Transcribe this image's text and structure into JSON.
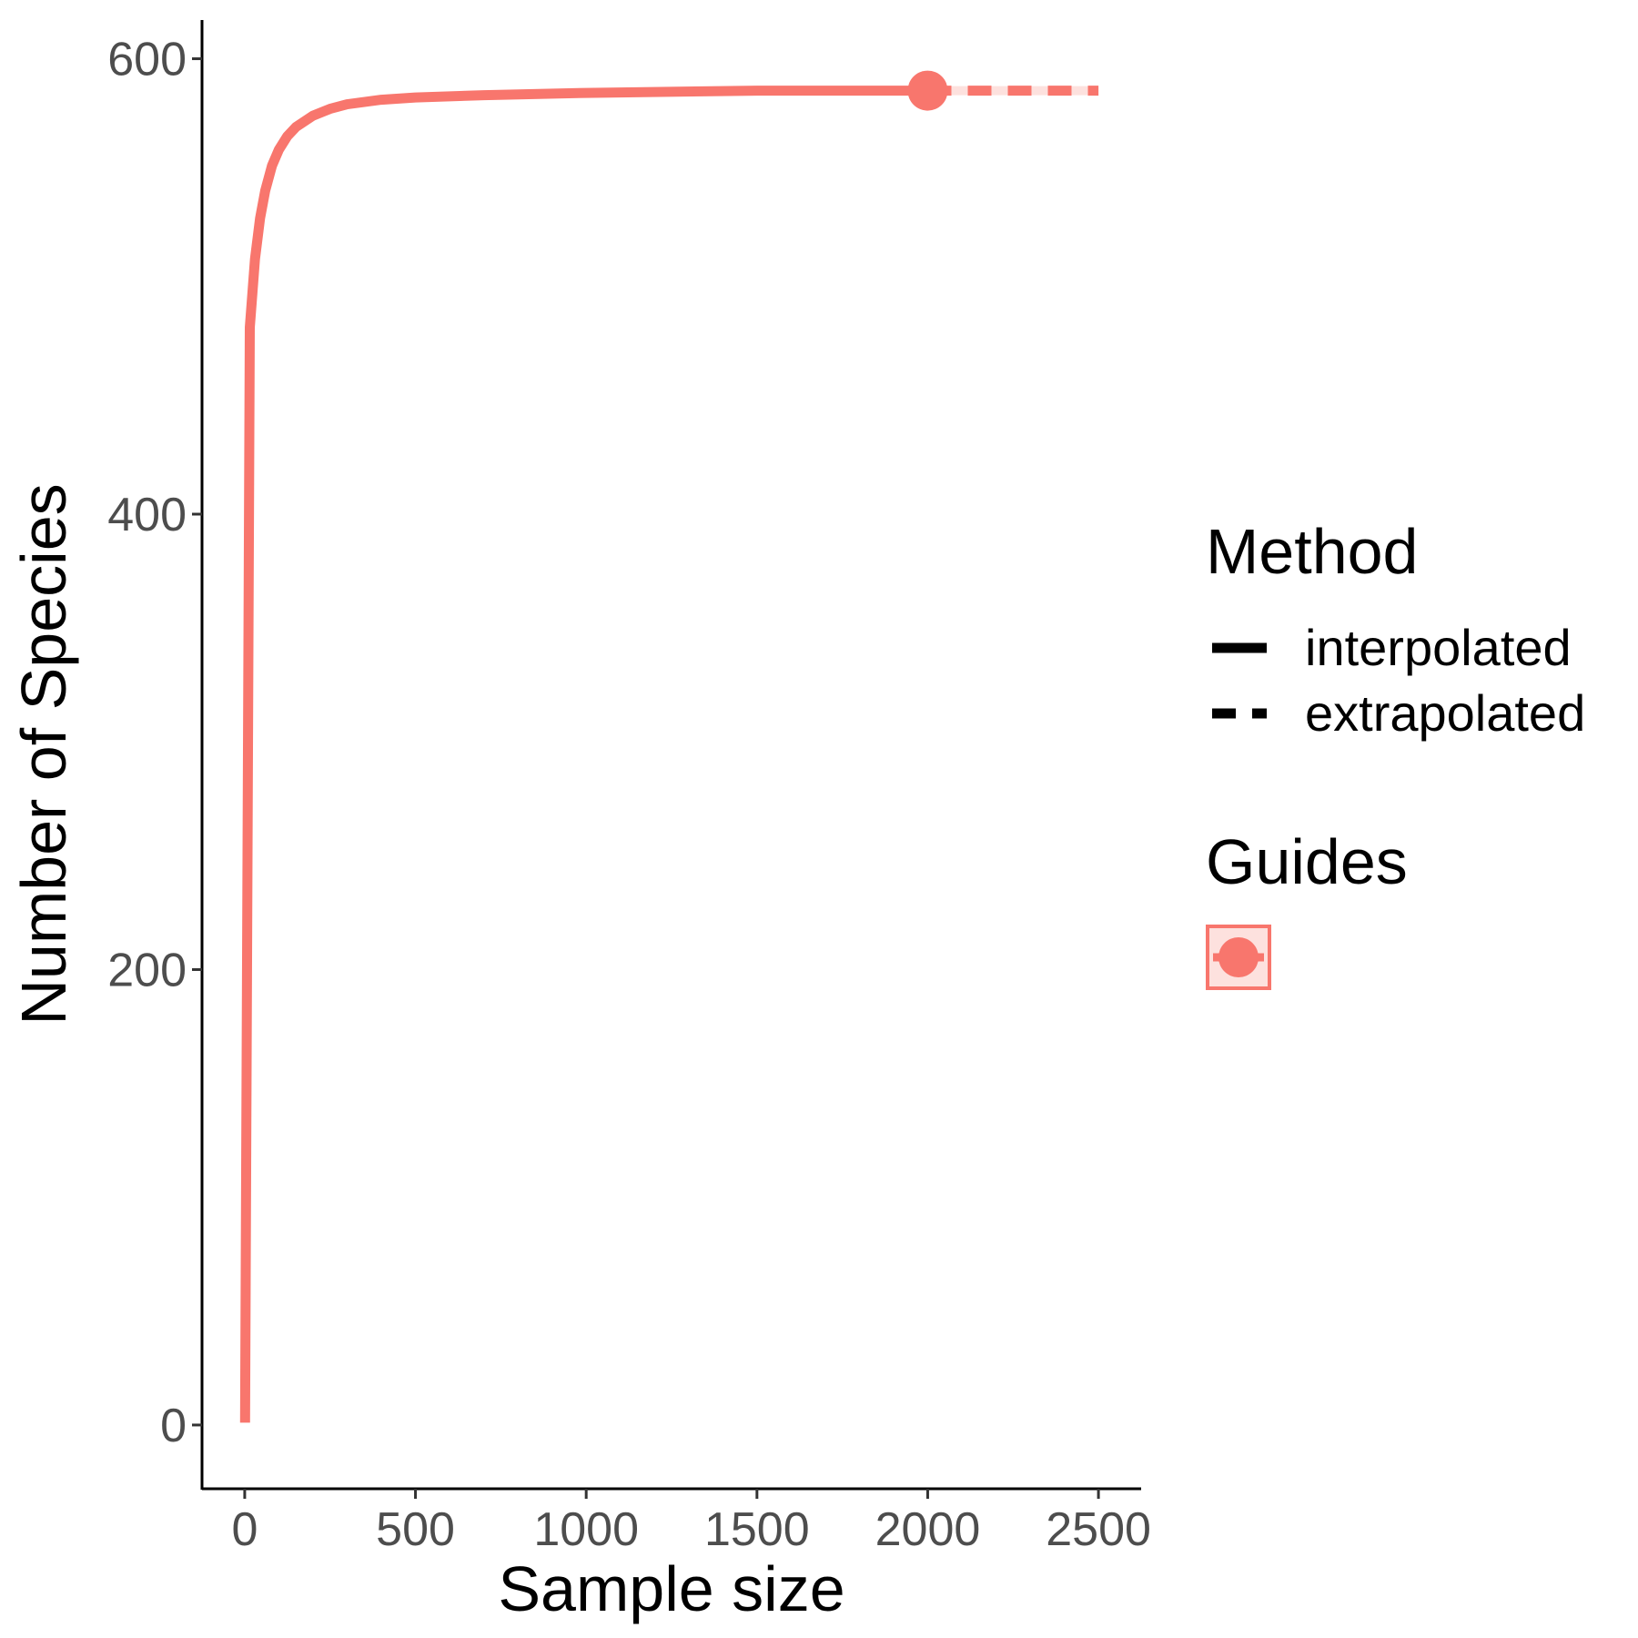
{
  "chart_data": {
    "type": "line",
    "xlabel": "Sample size",
    "ylabel": "Number of Species",
    "x_ticks": [
      0,
      500,
      1000,
      1500,
      2000,
      2500
    ],
    "y_ticks": [
      0,
      200,
      400,
      600
    ],
    "xlim": [
      -125,
      2625
    ],
    "ylim": [
      -28,
      617
    ],
    "grid": false,
    "legend_position": "right",
    "series": [
      {
        "method": "interpolated",
        "line_style": "solid",
        "color": "#F8766D",
        "x": [
          1,
          15,
          30,
          45,
          60,
          80,
          100,
          125,
          150,
          200,
          250,
          300,
          400,
          500,
          700,
          1000,
          1500,
          2000
        ],
        "y": [
          1,
          482,
          512,
          530,
          542,
          553,
          560,
          566,
          570,
          575,
          578,
          580,
          582,
          583,
          584,
          585,
          586,
          586
        ]
      },
      {
        "method": "extrapolated",
        "line_style": "dashed",
        "color": "#F8766D",
        "x": [
          2000,
          2100,
          2200,
          2300,
          2400,
          2500
        ],
        "y": [
          586,
          586,
          586,
          586,
          586,
          586
        ]
      }
    ],
    "observed_point": {
      "x": 2000,
      "y": 586
    },
    "legend": {
      "method_title": "Method",
      "method_entries": [
        "interpolated",
        "extrapolated"
      ],
      "guides_title": "Guides"
    }
  }
}
